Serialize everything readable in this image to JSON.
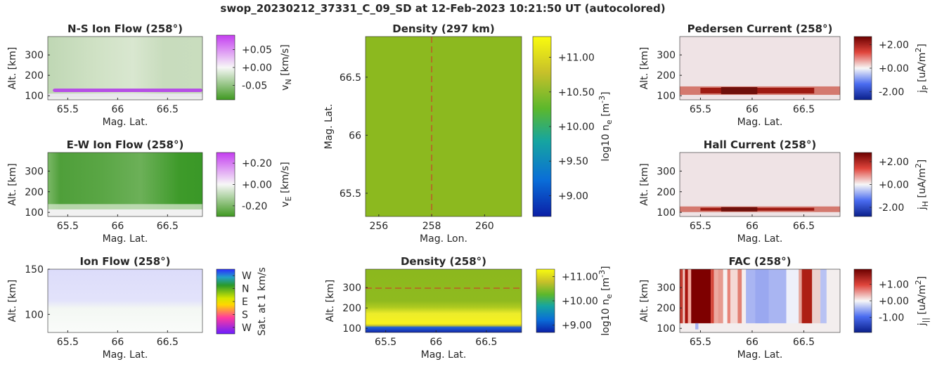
{
  "figure": {
    "suptitle": "swop_20230212_37331_C_09_SD at 12-Feb-2023 10:21:50 UT (autocolored)"
  },
  "chart_data": [
    {
      "id": "ns_flow",
      "type": "heatmap",
      "title": "N-S Ion Flow (258°)",
      "xlabel": "Mag. Lat.",
      "ylabel": "Alt. [km]",
      "xlim": [
        65.3,
        66.85
      ],
      "ylim": [
        80,
        390
      ],
      "xticks": [
        "65.5",
        "66",
        "66.5"
      ],
      "yticks": [
        "100",
        "200",
        "300"
      ],
      "colormap": "purple-white-green",
      "colorbar": {
        "label": "v_N [km/s]",
        "range": [
          -0.09,
          0.09
        ],
        "ticks": [
          "+0.05",
          "+0.00",
          "-0.05"
        ]
      }
    },
    {
      "id": "ew_flow",
      "type": "heatmap",
      "title": "E-W Ion Flow (258°)",
      "xlabel": "Mag. Lat.",
      "ylabel": "Alt. [km]",
      "xlim": [
        65.3,
        66.85
      ],
      "ylim": [
        80,
        390
      ],
      "xticks": [
        "65.5",
        "66",
        "66.5"
      ],
      "yticks": [
        "100",
        "200",
        "300"
      ],
      "colormap": "purple-white-green",
      "colorbar": {
        "label": "v_E [km/s]",
        "range": [
          -0.3,
          0.3
        ],
        "ticks": [
          "+0.20",
          "+0.00",
          "-0.20"
        ]
      }
    },
    {
      "id": "ion_flow",
      "type": "heatmap",
      "title": "Ion Flow (258°)",
      "xlabel": "Mag. Lat.",
      "ylabel": "Alt. [km]",
      "xlim": [
        65.3,
        66.85
      ],
      "ylim": [
        80,
        150
      ],
      "xticks": [
        "65.5",
        "66",
        "66.5"
      ],
      "yticks": [
        "100",
        "150"
      ],
      "colormap": "direction-wheel",
      "colorbar": {
        "label": "Sat. at 1 km/s",
        "ticks": [
          "W",
          "N",
          "E",
          "S",
          "W"
        ]
      }
    },
    {
      "id": "density_map",
      "type": "heatmap",
      "title": "Density (297 km)",
      "xlabel": "Mag. Lon.",
      "ylabel": "Mag. Lat.",
      "xlim": [
        255.5,
        261.4
      ],
      "ylim": [
        65.3,
        66.85
      ],
      "xticks": [
        "256",
        "258",
        "260"
      ],
      "yticks": [
        "65.5",
        "66",
        "66.5"
      ],
      "reference_line": {
        "orientation": "vertical",
        "value": 258
      },
      "colormap": "parula",
      "colorbar": {
        "label": "log10 n_e [m^-3]",
        "range": [
          8.7,
          11.3
        ],
        "ticks": [
          "+11.00",
          "+10.50",
          "+10.00",
          "+9.50",
          "+9.00"
        ]
      }
    },
    {
      "id": "density_profile",
      "type": "heatmap",
      "title": "Density (258°)",
      "xlabel": "Mag. Lat.",
      "ylabel": "Alt. [km]",
      "xlim": [
        65.3,
        66.85
      ],
      "ylim": [
        80,
        390
      ],
      "xticks": [
        "65.5",
        "66",
        "66.5"
      ],
      "yticks": [
        "100",
        "200",
        "300"
      ],
      "reference_line": {
        "orientation": "horizontal",
        "value": 297
      },
      "colormap": "parula",
      "colorbar": {
        "label": "log10 n_e [m^-3]",
        "range": [
          8.7,
          11.3
        ],
        "ticks": [
          "+11.00",
          "+10.00",
          "+9.00"
        ]
      }
    },
    {
      "id": "pedersen",
      "type": "heatmap",
      "title": "Pedersen Current (258°)",
      "xlabel": "Mag. Lat.",
      "ylabel": "Alt. [km]",
      "xlim": [
        65.3,
        66.85
      ],
      "ylim": [
        80,
        390
      ],
      "xticks": [
        "65.5",
        "66",
        "66.5"
      ],
      "yticks": [
        "100",
        "200",
        "300"
      ],
      "colormap": "blue-white-red",
      "colorbar": {
        "label": "j_P [uA/m^2]",
        "range": [
          -2.7,
          2.7
        ],
        "ticks": [
          "+2.00",
          "+0.00",
          "-2.00"
        ]
      }
    },
    {
      "id": "hall",
      "type": "heatmap",
      "title": "Hall Current (258°)",
      "xlabel": "Mag. Lat.",
      "ylabel": "Alt. [km]",
      "xlim": [
        65.3,
        66.85
      ],
      "ylim": [
        80,
        390
      ],
      "xticks": [
        "65.5",
        "66",
        "66.5"
      ],
      "yticks": [
        "100",
        "200",
        "300"
      ],
      "colormap": "blue-white-red",
      "colorbar": {
        "label": "j_H [uA/m^2]",
        "range": [
          -2.8,
          2.8
        ],
        "ticks": [
          "+2.00",
          "+0.00",
          "-2.00"
        ]
      }
    },
    {
      "id": "fac",
      "type": "heatmap",
      "title": "FAC (258°)",
      "xlabel": "Mag. Lat.",
      "ylabel": "Alt. [km]",
      "xlim": [
        65.3,
        66.85
      ],
      "ylim": [
        80,
        390
      ],
      "xticks": [
        "65.5",
        "66",
        "66.5"
      ],
      "yticks": [
        "100",
        "200",
        "300"
      ],
      "colormap": "blue-white-red",
      "colorbar": {
        "label": "j_|| [uA/m^2]",
        "range": [
          -1.9,
          1.9
        ],
        "ticks": [
          "+1.00",
          "+0.00",
          "-1.00"
        ]
      }
    }
  ]
}
